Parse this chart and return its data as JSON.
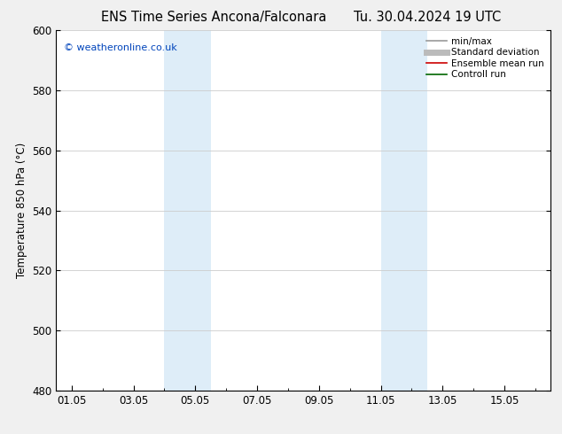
{
  "title_left": "ENS Time Series Ancona/Falconara",
  "title_right": "Tu. 30.04.2024 19 UTC",
  "ylabel": "Temperature 850 hPa (°C)",
  "ylim": [
    480,
    600
  ],
  "yticks": [
    480,
    500,
    520,
    540,
    560,
    580,
    600
  ],
  "xtick_labels": [
    "01.05",
    "03.05",
    "05.05",
    "07.05",
    "09.05",
    "11.05",
    "13.05",
    "15.05"
  ],
  "xtick_values": [
    1,
    3,
    5,
    7,
    9,
    11,
    13,
    15
  ],
  "xlim": [
    0.5,
    16.5
  ],
  "shade_bands": [
    {
      "x_start": 4.0,
      "x_end": 5.5,
      "color": "#deedf8"
    },
    {
      "x_start": 11.0,
      "x_end": 12.5,
      "color": "#deedf8"
    }
  ],
  "watermark_text": "© weatheronline.co.uk",
  "watermark_color": "#0044bb",
  "legend_entries": [
    {
      "label": "min/max",
      "color": "#999999",
      "lw": 1.2
    },
    {
      "label": "Standard deviation",
      "color": "#bbbbbb",
      "lw": 5
    },
    {
      "label": "Ensemble mean run",
      "color": "#cc0000",
      "lw": 1.2
    },
    {
      "label": "Controll run",
      "color": "#006600",
      "lw": 1.2
    }
  ],
  "bg_color": "#f0f0f0",
  "plot_bg_color": "#ffffff",
  "grid_color": "#cccccc",
  "title_fontsize": 10.5,
  "tick_fontsize": 8.5,
  "ylabel_fontsize": 8.5,
  "legend_fontsize": 7.5
}
